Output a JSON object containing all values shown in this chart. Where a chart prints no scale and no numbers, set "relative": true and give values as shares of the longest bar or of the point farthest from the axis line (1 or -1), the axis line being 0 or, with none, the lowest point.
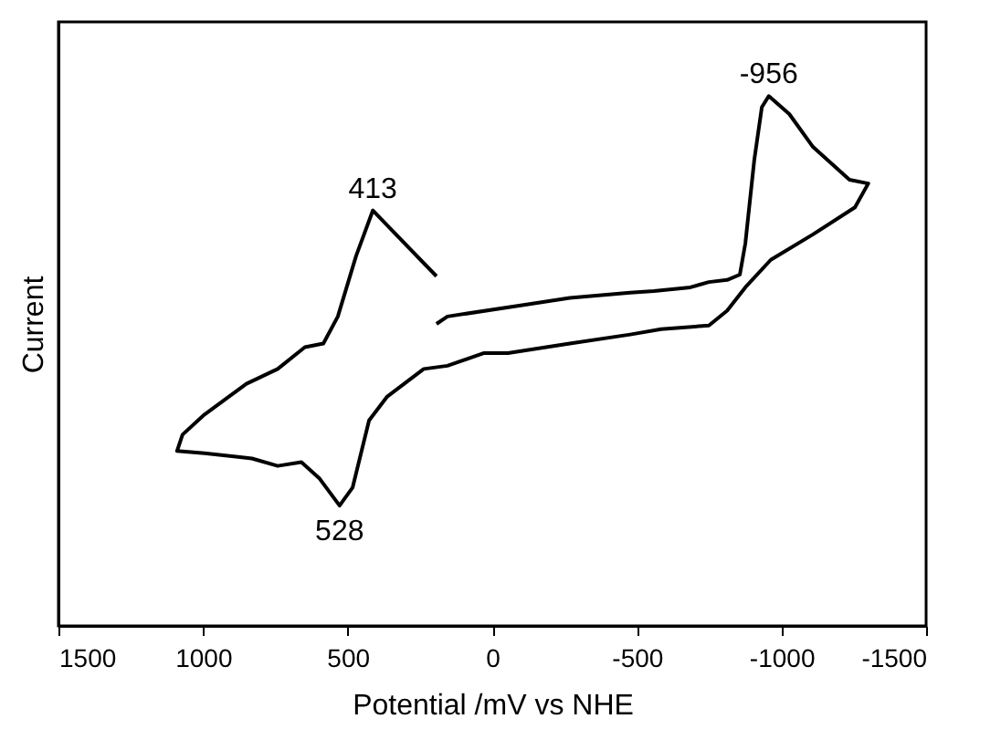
{
  "chart_data": {
    "type": "line",
    "xlabel": "Potential /mV vs NHE",
    "ylabel": "Current",
    "relative": true,
    "xlim": [
      1500,
      -1500
    ],
    "xticks": [
      1500,
      1000,
      500,
      0,
      -500,
      -1000,
      -1500
    ],
    "x": [
      193,
      413,
      471,
      534,
      584,
      648,
      742,
      850,
      995,
      1071,
      1090,
      995,
      831,
      742,
      660,
      597,
      528,
      483,
      426,
      363,
      237,
      155,
      28,
      -54,
      -268,
      -477,
      -584,
      -749,
      -812,
      -875,
      -963,
      -1109,
      -1254,
      -1300,
      -1235,
      -1109,
      -1027,
      -956,
      -932,
      -906,
      -875,
      -856,
      -812,
      -749,
      -685,
      -559,
      -477,
      -268,
      -98,
      155,
      193
    ],
    "series": [
      {
        "color": "#000000",
        "values": [
          0.66,
          0.784,
          0.698,
          0.584,
          0.533,
          0.526,
          0.485,
          0.457,
          0.399,
          0.361,
          0.33,
          0.326,
          0.316,
          0.302,
          0.309,
          0.278,
          0.227,
          0.261,
          0.388,
          0.433,
          0.485,
          0.491,
          0.515,
          0.515,
          0.533,
          0.55,
          0.56,
          0.567,
          0.595,
          0.639,
          0.691,
          0.739,
          0.79,
          0.835,
          0.842,
          0.904,
          0.966,
          1.0,
          0.979,
          0.88,
          0.722,
          0.663,
          0.653,
          0.649,
          0.639,
          0.632,
          0.629,
          0.619,
          0.605,
          0.584,
          0.57
        ]
      }
    ],
    "annotations": [
      {
        "text": "413",
        "x": 413,
        "y": 0.784
      },
      {
        "text": "528",
        "x": 528,
        "y": 0.227
      },
      {
        "text": "-956",
        "x": -956,
        "y": 1.0
      }
    ],
    "grid": false,
    "legend": false
  }
}
